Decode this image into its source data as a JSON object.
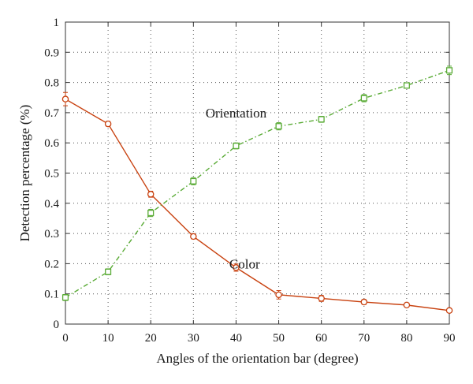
{
  "chart_data": {
    "type": "line",
    "title": "",
    "xlabel": "Angles of the orientation bar (degree)",
    "ylabel": "Detection percentage (%)",
    "xlim": [
      0,
      90
    ],
    "ylim": [
      0,
      1
    ],
    "x_ticks": [
      0,
      10,
      20,
      30,
      40,
      50,
      60,
      70,
      80,
      90
    ],
    "x_tick_labels": [
      "0",
      "10",
      "20",
      "30",
      "40",
      "50",
      "60",
      "70",
      "80",
      "90"
    ],
    "y_ticks": [
      0,
      0.1,
      0.2,
      0.3,
      0.4,
      0.5,
      0.6,
      0.7,
      0.8,
      0.9,
      1
    ],
    "y_tick_labels": [
      "0",
      "0.1",
      "0.2",
      "0.3",
      "0.4",
      "0.5",
      "0.6",
      "0.7",
      "0.8",
      "0.9",
      "1"
    ],
    "grid": "dotted",
    "x": [
      0,
      10,
      20,
      30,
      40,
      50,
      60,
      70,
      80,
      90
    ],
    "series": [
      {
        "name": "Color",
        "color": "#c8410f",
        "marker": "circle",
        "line_style": "solid",
        "values": [
          0.745,
          0.663,
          0.43,
          0.29,
          0.187,
          0.097,
          0.085,
          0.073,
          0.063,
          0.045
        ],
        "errors": [
          0.022,
          0.008,
          0.01,
          0.008,
          0.012,
          0.014,
          0.01,
          0.008,
          0.006,
          0.006
        ]
      },
      {
        "name": "Orientation",
        "color": "#5aab36",
        "marker": "square",
        "line_style": "dashdot",
        "values": [
          0.088,
          0.173,
          0.368,
          0.473,
          0.59,
          0.655,
          0.678,
          0.748,
          0.79,
          0.84
        ],
        "errors": [
          0.01,
          0.01,
          0.012,
          0.012,
          0.01,
          0.012,
          0.01,
          0.012,
          0.008,
          0.014
        ]
      }
    ],
    "annotations": [
      {
        "text": "Orientation",
        "x": 40,
        "y": 0.7,
        "series": "Orientation"
      },
      {
        "text": "Color",
        "x": 42,
        "y": 0.2,
        "series": "Color"
      }
    ]
  }
}
